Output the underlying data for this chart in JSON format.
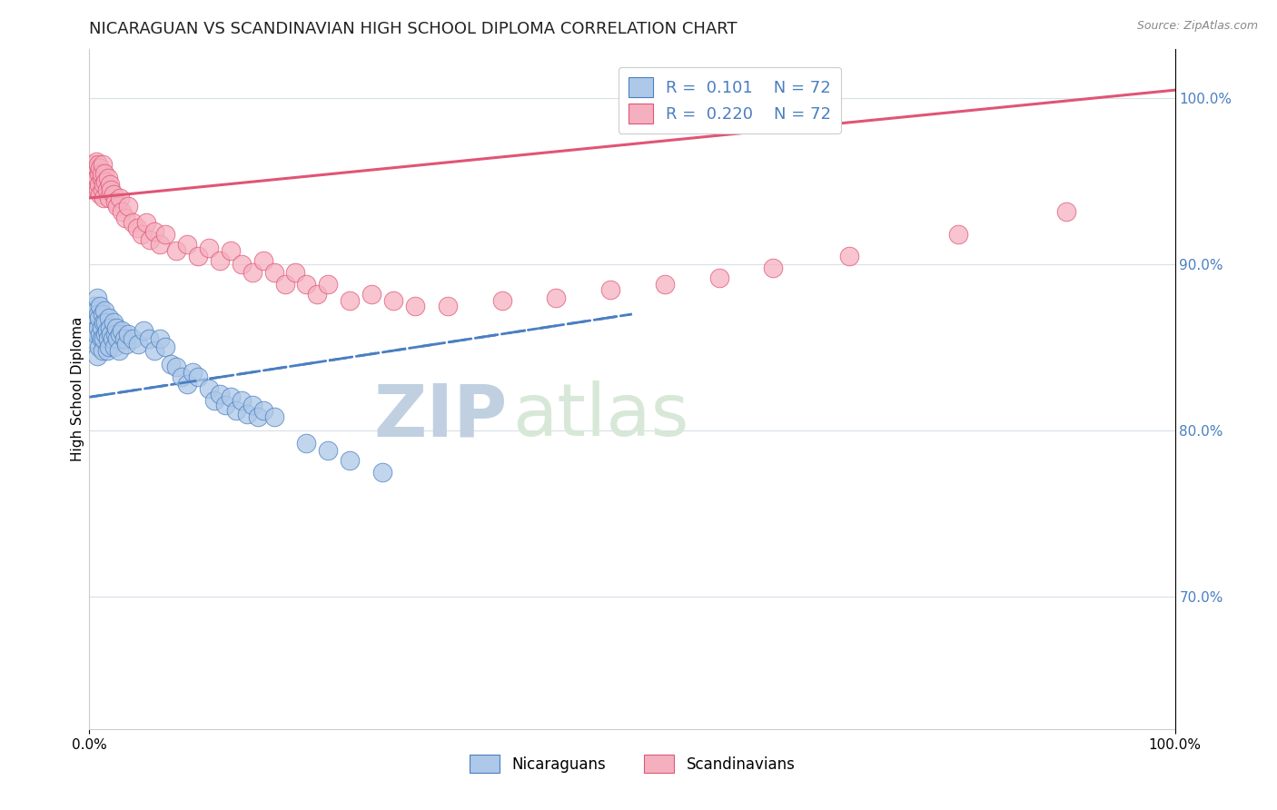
{
  "title": "NICARAGUAN VS SCANDINAVIAN HIGH SCHOOL DIPLOMA CORRELATION CHART",
  "source_text": "Source: ZipAtlas.com",
  "ylabel": "High School Diploma",
  "xlim": [
    0.0,
    1.0
  ],
  "ylim": [
    0.62,
    1.03
  ],
  "right_yticks": [
    0.7,
    0.8,
    0.9,
    1.0
  ],
  "right_yticklabels": [
    "70.0%",
    "80.0%",
    "90.0%",
    "100.0%"
  ],
  "nicaraguan_color": "#adc8e8",
  "scandinavian_color": "#f5b0c0",
  "nicaraguan_line_color": "#4a7fc1",
  "scandinavian_line_color": "#e05575",
  "grid_color": "#d8e0e8",
  "watermark_color_zip": "#c0d0e0",
  "watermark_color_atlas": "#d8e8d8",
  "legend_label1": "Nicaraguans",
  "legend_label2": "Scandinavians",
  "title_fontsize": 13,
  "axis_label_fontsize": 11,
  "tick_fontsize": 11,
  "background_color": "#ffffff",
  "nicaraguan_x": [
    0.002,
    0.003,
    0.004,
    0.005,
    0.005,
    0.006,
    0.006,
    0.007,
    0.007,
    0.008,
    0.008,
    0.009,
    0.009,
    0.01,
    0.01,
    0.011,
    0.011,
    0.012,
    0.012,
    0.013,
    0.013,
    0.014,
    0.015,
    0.015,
    0.016,
    0.016,
    0.017,
    0.018,
    0.018,
    0.019,
    0.02,
    0.021,
    0.022,
    0.023,
    0.024,
    0.025,
    0.026,
    0.027,
    0.028,
    0.03,
    0.032,
    0.034,
    0.036,
    0.04,
    0.045,
    0.05,
    0.055,
    0.06,
    0.065,
    0.07,
    0.075,
    0.08,
    0.085,
    0.09,
    0.095,
    0.1,
    0.11,
    0.115,
    0.12,
    0.125,
    0.13,
    0.135,
    0.14,
    0.145,
    0.15,
    0.155,
    0.16,
    0.17,
    0.2,
    0.22,
    0.24,
    0.27
  ],
  "nicaraguan_y": [
    0.87,
    0.855,
    0.865,
    0.875,
    0.86,
    0.858,
    0.872,
    0.88,
    0.845,
    0.862,
    0.87,
    0.85,
    0.868,
    0.858,
    0.875,
    0.862,
    0.855,
    0.87,
    0.848,
    0.865,
    0.855,
    0.872,
    0.858,
    0.865,
    0.848,
    0.86,
    0.855,
    0.868,
    0.85,
    0.862,
    0.858,
    0.855,
    0.865,
    0.85,
    0.858,
    0.862,
    0.855,
    0.848,
    0.858,
    0.86,
    0.855,
    0.852,
    0.858,
    0.855,
    0.852,
    0.86,
    0.855,
    0.848,
    0.855,
    0.85,
    0.84,
    0.838,
    0.832,
    0.828,
    0.835,
    0.832,
    0.825,
    0.818,
    0.822,
    0.815,
    0.82,
    0.812,
    0.818,
    0.81,
    0.815,
    0.808,
    0.812,
    0.808,
    0.792,
    0.788,
    0.782,
    0.775
  ],
  "scandinavian_x": [
    0.002,
    0.003,
    0.004,
    0.005,
    0.005,
    0.006,
    0.006,
    0.007,
    0.007,
    0.008,
    0.008,
    0.009,
    0.009,
    0.01,
    0.01,
    0.011,
    0.011,
    0.012,
    0.012,
    0.013,
    0.013,
    0.014,
    0.015,
    0.016,
    0.017,
    0.018,
    0.019,
    0.02,
    0.022,
    0.024,
    0.026,
    0.028,
    0.03,
    0.033,
    0.036,
    0.04,
    0.044,
    0.048,
    0.052,
    0.056,
    0.06,
    0.065,
    0.07,
    0.08,
    0.09,
    0.1,
    0.11,
    0.12,
    0.13,
    0.14,
    0.15,
    0.16,
    0.17,
    0.18,
    0.19,
    0.2,
    0.21,
    0.22,
    0.24,
    0.26,
    0.28,
    0.3,
    0.33,
    0.38,
    0.43,
    0.48,
    0.53,
    0.58,
    0.63,
    0.7,
    0.8,
    0.9
  ],
  "scandinavian_y": [
    0.958,
    0.952,
    0.96,
    0.955,
    0.948,
    0.962,
    0.945,
    0.958,
    0.952,
    0.96,
    0.945,
    0.955,
    0.948,
    0.958,
    0.942,
    0.952,
    0.955,
    0.945,
    0.96,
    0.948,
    0.94,
    0.955,
    0.95,
    0.945,
    0.952,
    0.94,
    0.948,
    0.945,
    0.942,
    0.938,
    0.935,
    0.94,
    0.932,
    0.928,
    0.935,
    0.925,
    0.922,
    0.918,
    0.925,
    0.915,
    0.92,
    0.912,
    0.918,
    0.908,
    0.912,
    0.905,
    0.91,
    0.902,
    0.908,
    0.9,
    0.895,
    0.902,
    0.895,
    0.888,
    0.895,
    0.888,
    0.882,
    0.888,
    0.878,
    0.882,
    0.878,
    0.875,
    0.875,
    0.878,
    0.88,
    0.885,
    0.888,
    0.892,
    0.898,
    0.905,
    0.918,
    0.932
  ],
  "nic_trend_x0": 0.0,
  "nic_trend_y0": 0.82,
  "nic_trend_x1": 0.5,
  "nic_trend_y1": 0.87,
  "scan_trend_x0": 0.0,
  "scan_trend_y0": 0.94,
  "scan_trend_x1": 1.0,
  "scan_trend_y1": 1.005
}
